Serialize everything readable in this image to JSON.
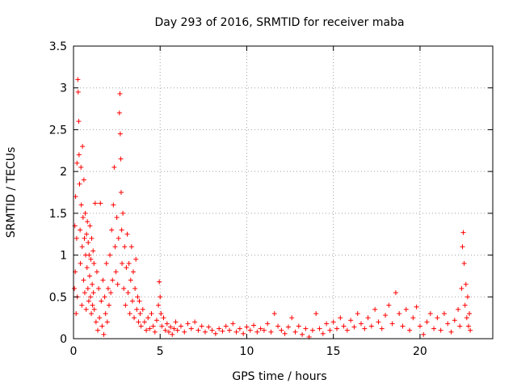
{
  "chart_data": {
    "type": "scatter",
    "title": "Day 293 of 2016, SRMTID for receiver maba",
    "xlabel": "GPS time / hours",
    "ylabel": "SRMTID / TECUs",
    "xlim": [
      0,
      24.2
    ],
    "ylim": [
      0,
      3.5
    ],
    "grid": true,
    "marker": "+",
    "color": "#ff0000",
    "xticks": [
      0,
      5,
      10,
      15,
      20
    ],
    "xtick_labels": [
      "0",
      "5",
      "10",
      "15",
      "20"
    ],
    "yticks": [
      0,
      0.5,
      1,
      1.5,
      2,
      2.5,
      3,
      3.5
    ],
    "ytick_labels": [
      "0",
      "0.5",
      "1",
      "1.5",
      "2",
      "2.5",
      "3",
      "3.5"
    ],
    "series": [
      {
        "name": "SRMTID",
        "points": [
          [
            0.05,
            0.6
          ],
          [
            0.08,
            1.35
          ],
          [
            0.1,
            0.8
          ],
          [
            0.12,
            1.7
          ],
          [
            0.15,
            0.3
          ],
          [
            0.18,
            1.2
          ],
          [
            0.2,
            2.1
          ],
          [
            0.22,
            0.5
          ],
          [
            0.25,
            3.1
          ],
          [
            0.27,
            2.95
          ],
          [
            0.3,
            2.6
          ],
          [
            0.32,
            2.2
          ],
          [
            0.35,
            1.85
          ],
          [
            0.38,
            1.3
          ],
          [
            0.4,
            0.9
          ],
          [
            0.43,
            2.05
          ],
          [
            0.45,
            1.6
          ],
          [
            0.48,
            0.4
          ],
          [
            0.5,
            1.1
          ],
          [
            0.52,
            2.3
          ],
          [
            0.55,
            1.45
          ],
          [
            0.58,
            0.7
          ],
          [
            0.6,
            1.9
          ],
          [
            0.63,
            1.2
          ],
          [
            0.65,
            0.55
          ],
          [
            0.68,
            1.5
          ],
          [
            0.7,
            1.0
          ],
          [
            0.73,
            0.35
          ],
          [
            0.75,
            1.25
          ],
          [
            0.78,
            0.85
          ],
          [
            0.8,
            1.4
          ],
          [
            0.83,
            0.6
          ],
          [
            0.85,
            1.15
          ],
          [
            0.88,
            0.45
          ],
          [
            0.9,
            1.0
          ],
          [
            0.93,
            0.75
          ],
          [
            0.95,
            1.35
          ],
          [
            0.98,
            0.5
          ],
          [
            1.0,
            0.95
          ],
          [
            1.03,
            0.3
          ],
          [
            1.05,
            1.2
          ],
          [
            1.08,
            0.65
          ],
          [
            1.1,
            0.4
          ],
          [
            1.13,
            1.05
          ],
          [
            1.15,
            0.55
          ],
          [
            1.18,
            0.9
          ],
          [
            1.2,
            0.35
          ],
          [
            1.25,
            1.62
          ],
          [
            1.3,
            0.2
          ],
          [
            1.35,
            0.8
          ],
          [
            1.4,
            0.1
          ],
          [
            1.45,
            0.6
          ],
          [
            1.5,
            0.25
          ],
          [
            1.55,
            1.62
          ],
          [
            1.6,
            0.45
          ],
          [
            1.65,
            0.15
          ],
          [
            1.7,
            0.7
          ],
          [
            1.75,
            0.05
          ],
          [
            1.8,
            0.5
          ],
          [
            1.85,
            0.3
          ],
          [
            1.9,
            0.9
          ],
          [
            1.95,
            0.2
          ],
          [
            2.0,
            0.6
          ],
          [
            2.05,
            0.4
          ],
          [
            2.1,
            1.0
          ],
          [
            2.15,
            0.55
          ],
          [
            2.2,
            1.3
          ],
          [
            2.25,
            0.7
          ],
          [
            2.3,
            1.6
          ],
          [
            2.35,
            2.05
          ],
          [
            2.4,
            1.1
          ],
          [
            2.45,
            0.8
          ],
          [
            2.5,
            1.45
          ],
          [
            2.55,
            0.65
          ],
          [
            2.6,
            1.2
          ],
          [
            2.65,
            2.7
          ],
          [
            2.68,
            2.93
          ],
          [
            2.7,
            2.45
          ],
          [
            2.73,
            2.15
          ],
          [
            2.75,
            1.75
          ],
          [
            2.78,
            1.3
          ],
          [
            2.8,
            0.9
          ],
          [
            2.85,
            1.5
          ],
          [
            2.9,
            0.6
          ],
          [
            2.95,
            1.1
          ],
          [
            3.0,
            0.4
          ],
          [
            3.05,
            0.85
          ],
          [
            3.1,
            1.25
          ],
          [
            3.15,
            0.55
          ],
          [
            3.2,
            0.9
          ],
          [
            3.25,
            0.3
          ],
          [
            3.3,
            0.7
          ],
          [
            3.35,
            1.1
          ],
          [
            3.4,
            0.45
          ],
          [
            3.45,
            0.8
          ],
          [
            3.5,
            0.25
          ],
          [
            3.55,
            0.6
          ],
          [
            3.6,
            0.95
          ],
          [
            3.65,
            0.35
          ],
          [
            3.7,
            0.5
          ],
          [
            3.75,
            0.2
          ],
          [
            3.8,
            0.45
          ],
          [
            3.85,
            0.3
          ],
          [
            3.9,
            0.15
          ],
          [
            4.0,
            0.35
          ],
          [
            4.1,
            0.2
          ],
          [
            4.2,
            0.1
          ],
          [
            4.3,
            0.25
          ],
          [
            4.4,
            0.12
          ],
          [
            4.5,
            0.3
          ],
          [
            4.6,
            0.15
          ],
          [
            4.7,
            0.08
          ],
          [
            4.8,
            0.22
          ],
          [
            4.9,
            0.4
          ],
          [
            4.95,
            0.68
          ],
          [
            5.0,
            0.5
          ],
          [
            5.05,
            0.3
          ],
          [
            5.1,
            0.15
          ],
          [
            5.2,
            0.25
          ],
          [
            5.3,
            0.1
          ],
          [
            5.4,
            0.18
          ],
          [
            5.5,
            0.08
          ],
          [
            5.6,
            0.14
          ],
          [
            5.7,
            0.05
          ],
          [
            5.8,
            0.12
          ],
          [
            5.9,
            0.2
          ],
          [
            6.0,
            0.1
          ],
          [
            6.2,
            0.15
          ],
          [
            6.4,
            0.08
          ],
          [
            6.6,
            0.18
          ],
          [
            6.8,
            0.12
          ],
          [
            7.0,
            0.2
          ],
          [
            7.2,
            0.1
          ],
          [
            7.4,
            0.15
          ],
          [
            7.6,
            0.08
          ],
          [
            7.8,
            0.14
          ],
          [
            8.0,
            0.1
          ],
          [
            8.2,
            0.06
          ],
          [
            8.4,
            0.12
          ],
          [
            8.6,
            0.09
          ],
          [
            8.8,
            0.15
          ],
          [
            9.0,
            0.1
          ],
          [
            9.2,
            0.18
          ],
          [
            9.4,
            0.08
          ],
          [
            9.6,
            0.12
          ],
          [
            9.8,
            0.06
          ],
          [
            10.0,
            0.14
          ],
          [
            10.2,
            0.1
          ],
          [
            10.4,
            0.16
          ],
          [
            10.6,
            0.08
          ],
          [
            10.8,
            0.12
          ],
          [
            11.0,
            0.1
          ],
          [
            11.2,
            0.18
          ],
          [
            11.4,
            0.08
          ],
          [
            11.6,
            0.3
          ],
          [
            11.8,
            0.15
          ],
          [
            12.0,
            0.1
          ],
          [
            12.2,
            0.06
          ],
          [
            12.4,
            0.14
          ],
          [
            12.6,
            0.25
          ],
          [
            12.8,
            0.08
          ],
          [
            13.0,
            0.15
          ],
          [
            13.2,
            0.05
          ],
          [
            13.4,
            0.12
          ],
          [
            13.6,
            0.02
          ],
          [
            13.8,
            0.1
          ],
          [
            14.0,
            0.3
          ],
          [
            14.2,
            0.12
          ],
          [
            14.4,
            0.06
          ],
          [
            14.6,
            0.18
          ],
          [
            14.8,
            0.1
          ],
          [
            15.0,
            0.2
          ],
          [
            15.2,
            0.12
          ],
          [
            15.4,
            0.25
          ],
          [
            15.6,
            0.15
          ],
          [
            15.8,
            0.1
          ],
          [
            16.0,
            0.22
          ],
          [
            16.2,
            0.14
          ],
          [
            16.4,
            0.3
          ],
          [
            16.6,
            0.18
          ],
          [
            16.8,
            0.12
          ],
          [
            17.0,
            0.25
          ],
          [
            17.2,
            0.15
          ],
          [
            17.4,
            0.35
          ],
          [
            17.6,
            0.2
          ],
          [
            17.8,
            0.12
          ],
          [
            18.0,
            0.28
          ],
          [
            18.2,
            0.4
          ],
          [
            18.4,
            0.18
          ],
          [
            18.6,
            0.55
          ],
          [
            18.8,
            0.3
          ],
          [
            19.0,
            0.15
          ],
          [
            19.2,
            0.35
          ],
          [
            19.4,
            0.1
          ],
          [
            19.6,
            0.25
          ],
          [
            19.8,
            0.38
          ],
          [
            20.0,
            0.15
          ],
          [
            20.2,
            0.05
          ],
          [
            20.4,
            0.2
          ],
          [
            20.6,
            0.3
          ],
          [
            20.8,
            0.12
          ],
          [
            21.0,
            0.25
          ],
          [
            21.2,
            0.1
          ],
          [
            21.4,
            0.3
          ],
          [
            21.6,
            0.18
          ],
          [
            21.8,
            0.08
          ],
          [
            22.0,
            0.22
          ],
          [
            22.2,
            0.35
          ],
          [
            22.3,
            0.15
          ],
          [
            22.4,
            0.6
          ],
          [
            22.45,
            1.1
          ],
          [
            22.5,
            1.27
          ],
          [
            22.55,
            0.9
          ],
          [
            22.6,
            0.4
          ],
          [
            22.65,
            0.65
          ],
          [
            22.7,
            0.25
          ],
          [
            22.75,
            0.5
          ],
          [
            22.8,
            0.15
          ],
          [
            22.85,
            0.3
          ],
          [
            22.9,
            0.1
          ]
        ]
      }
    ]
  }
}
